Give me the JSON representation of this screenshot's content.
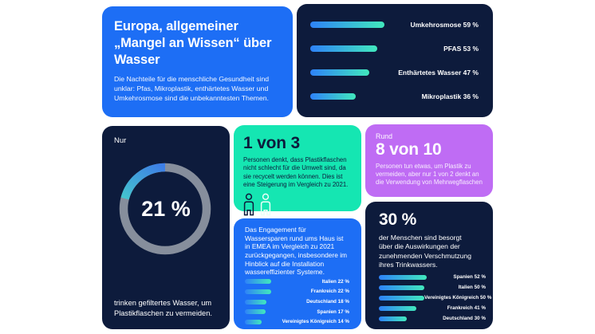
{
  "colors": {
    "background": "#ffffff",
    "blue": "#1d6ef5",
    "navy": "#0d1b3c",
    "mint": "#15e6b2",
    "purple": "#bf6cf4",
    "bar_gradient_start": "#2e82f8",
    "bar_gradient_end": "#41e8bd",
    "donut_ring": "#939ba6",
    "donut_arc_start": "#3d7de6",
    "donut_arc_end": "#47e6c3"
  },
  "panels": {
    "intro": {
      "title": "Europa, allgemeiner „Mangel an Wissen“ über Wasser",
      "body": "Die Nachteile für die menschliche Gesundheit sind unklar: Pfas, Mikroplastik, enthärtetes Wasser und Umkehrosmose sind die unbekanntesten Themen."
    },
    "filtered_water": {
      "prefix": "Nur",
      "value_label": "21 %",
      "caption": "trinken gefiltertes Wasser, um Plastikflaschen zu vermeiden."
    },
    "one_in_three": {
      "headline": "1 von 3",
      "body": "Personen denkt, dass Plastikflaschen nicht schlecht für die Umwelt sind, da sie recycelt werden können. Dies ist eine Steigerung im Vergleich zu 2021.",
      "icons": [
        "person-dark-icon",
        "person-light-icon"
      ]
    },
    "eight_of_ten": {
      "prefix": "Rund",
      "headline": "8 von 10",
      "body": "Personen tun etwas, um Plastik zu vermeiden, aber nur 1 von 2 denkt an die Verwendung von Mehrwegflaschen"
    },
    "engagement": {
      "body": "Das Engagement für Wassersparen rund ums Haus ist in EMEA im Vergleich zu 2021 zurückgegangen, insbesondere im Hinblick auf die Installation wassereffizienter Systeme."
    },
    "concern": {
      "headline": "30 %",
      "body": "der Menschen sind besorgt über die Auswirkungen der zunehmenden Verschmutzung ihres Trinkwassers."
    }
  },
  "chart_data": [
    {
      "id": "unknown-water-topics",
      "type": "bar",
      "orientation": "horizontal",
      "categories": [
        "Umkehrosmose",
        "PFAS",
        "Enthärtetes Wasser",
        "Mikroplastik"
      ],
      "values": [
        59,
        53,
        47,
        36
      ],
      "unit": "%",
      "labels": [
        "Umkehrosmose 59 %",
        "PFAS 53 %",
        "Enthärtetes Wasser 47 %",
        "Mikroplastik 36 %"
      ],
      "legend": "none",
      "grid": false
    },
    {
      "id": "filtered-water-donut",
      "type": "donut",
      "value": 21,
      "max": 100,
      "label": "21 %",
      "direction": "counterclockwise-from-top"
    },
    {
      "id": "water-saving-engagement",
      "type": "bar",
      "orientation": "horizontal",
      "categories": [
        "Italien",
        "Frankreich",
        "Deutschland",
        "Spanien",
        "Vereinigtes Königreich"
      ],
      "values": [
        22,
        22,
        18,
        17,
        14
      ],
      "unit": "%",
      "labels": [
        "Italien 22 %",
        "Frankreich 22 %",
        "Deutschland 18 %",
        "Spanien 17 %",
        "Vereinigtes Königreich 14 %"
      ],
      "legend": "none",
      "grid": false
    },
    {
      "id": "pollution-concern",
      "type": "bar",
      "orientation": "horizontal",
      "categories": [
        "Spanien",
        "Italien",
        "Vereinigtes Königreich",
        "Frankreich",
        "Deutschland"
      ],
      "values": [
        52,
        50,
        50,
        41,
        30
      ],
      "unit": "%",
      "labels": [
        "Spanien 52 %",
        "Italien 50 %",
        "Vereinigtes Königreich 50 %",
        "Frankreich 41 %",
        "Deutschland 30 %"
      ],
      "legend": "none",
      "grid": false
    }
  ]
}
